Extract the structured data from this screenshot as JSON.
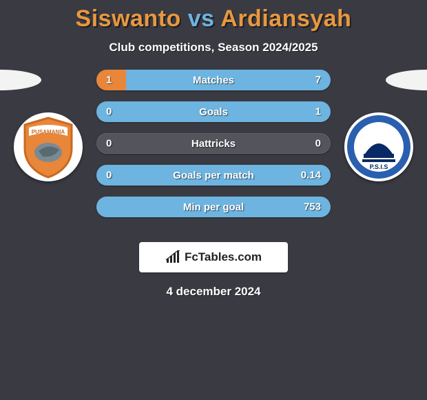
{
  "title": {
    "player1": "Siswanto",
    "vs": "vs",
    "player2": "Ardiansyah",
    "color_p1": "#e8983f",
    "color_vs": "#6db4e0",
    "color_p2": "#e8983f"
  },
  "subtitle": "Club competitions, Season 2024/2025",
  "ellipse_color": "#f3f3f3",
  "logos": {
    "left": {
      "bg": "#ffffff",
      "shield_fill": "#e8863a",
      "shield_stroke": "#c96a20",
      "banner_text": "PUSAMANIA",
      "subject": "bird"
    },
    "right": {
      "bg": "#ffffff",
      "ring_fill": "#2a5fb0",
      "inner_bg": "#ffffff",
      "text": "P.S.I.S",
      "text_color": "#0a2a66"
    }
  },
  "bars": {
    "track_color": "#54545c",
    "fill_left_color": "#e8863a",
    "fill_right_color": "#6db4e0",
    "rows": [
      {
        "label": "Matches",
        "left_val": "1",
        "right_val": "7",
        "left_pct": 12.5,
        "right_pct": 87.5
      },
      {
        "label": "Goals",
        "left_val": "0",
        "right_val": "1",
        "left_pct": 0,
        "right_pct": 100
      },
      {
        "label": "Hattricks",
        "left_val": "0",
        "right_val": "0",
        "left_pct": 0,
        "right_pct": 0
      },
      {
        "label": "Goals per match",
        "left_val": "0",
        "right_val": "0.14",
        "left_pct": 0,
        "right_pct": 100
      },
      {
        "label": "Min per goal",
        "left_val": "",
        "right_val": "753",
        "left_pct": 0,
        "right_pct": 100
      }
    ]
  },
  "branding": {
    "icon": "bar-chart",
    "text": "FcTables.com",
    "icon_color": "#222222"
  },
  "date": "4 december 2024",
  "background": "#3a3a42"
}
